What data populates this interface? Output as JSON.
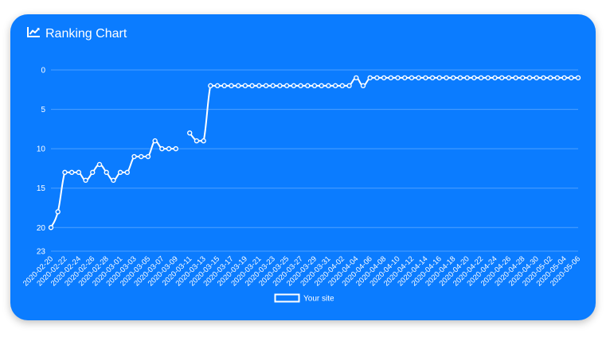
{
  "card": {
    "title": "Ranking Chart",
    "icon": "line-chart-icon"
  },
  "colors": {
    "background": "#0b7cff",
    "line": "#ffffff",
    "grid": "rgba(255,255,255,0.28)"
  },
  "chart_data": {
    "type": "line",
    "title": "Ranking Chart",
    "xlabel": "",
    "ylabel": "",
    "y_reversed": true,
    "ylim": [
      0,
      23
    ],
    "y_ticks": [
      "0",
      "5",
      "10",
      "15",
      "20",
      "23"
    ],
    "grid": true,
    "legend_position": "bottom",
    "x_tick_labels": [
      "2020-02-20",
      "2020-02-22",
      "2020-02-24",
      "2020-02-26",
      "2020-02-28",
      "2020-03-01",
      "2020-03-03",
      "2020-03-05",
      "2020-03-07",
      "2020-03-09",
      "2020-03-11",
      "2020-03-13",
      "2020-03-15",
      "2020-03-17",
      "2020-03-19",
      "2020-03-21",
      "2020-03-23",
      "2020-03-25",
      "2020-03-27",
      "2020-03-29",
      "2020-03-31",
      "2020-04-02",
      "2020-04-04",
      "2020-04-06",
      "2020-04-08",
      "2020-04-10",
      "2020-04-12",
      "2020-04-14",
      "2020-04-16",
      "2020-04-18",
      "2020-04-20",
      "2020-04-22",
      "2020-04-24",
      "2020-04-26",
      "2020-04-28",
      "2020-04-30",
      "2020-05-02",
      "2020-05-04",
      "2020-05-06"
    ],
    "x": [
      "2020-02-20",
      "2020-02-21",
      "2020-02-22",
      "2020-02-23",
      "2020-02-24",
      "2020-02-25",
      "2020-02-26",
      "2020-02-27",
      "2020-02-28",
      "2020-02-29",
      "2020-03-01",
      "2020-03-02",
      "2020-03-03",
      "2020-03-04",
      "2020-03-05",
      "2020-03-06",
      "2020-03-07",
      "2020-03-08",
      "2020-03-09",
      "2020-03-10",
      "2020-03-11",
      "2020-03-12",
      "2020-03-13",
      "2020-03-14",
      "2020-03-15",
      "2020-03-16",
      "2020-03-17",
      "2020-03-18",
      "2020-03-19",
      "2020-03-20",
      "2020-03-21",
      "2020-03-22",
      "2020-03-23",
      "2020-03-24",
      "2020-03-25",
      "2020-03-26",
      "2020-03-27",
      "2020-03-28",
      "2020-03-29",
      "2020-03-30",
      "2020-03-31",
      "2020-04-01",
      "2020-04-02",
      "2020-04-03",
      "2020-04-04",
      "2020-04-05",
      "2020-04-06",
      "2020-04-07",
      "2020-04-08",
      "2020-04-09",
      "2020-04-10",
      "2020-04-11",
      "2020-04-12",
      "2020-04-13",
      "2020-04-14",
      "2020-04-15",
      "2020-04-16",
      "2020-04-17",
      "2020-04-18",
      "2020-04-19",
      "2020-04-20",
      "2020-04-21",
      "2020-04-22",
      "2020-04-23",
      "2020-04-24",
      "2020-04-25",
      "2020-04-26",
      "2020-04-27",
      "2020-04-28",
      "2020-04-29",
      "2020-04-30",
      "2020-05-01",
      "2020-05-02",
      "2020-05-03",
      "2020-05-04",
      "2020-05-05",
      "2020-05-06"
    ],
    "series": [
      {
        "name": "Your site",
        "values": [
          20,
          18,
          13,
          13,
          13,
          14,
          13,
          12,
          13,
          14,
          13,
          13,
          11,
          11,
          11,
          9,
          10,
          10,
          10,
          null,
          8,
          9,
          9,
          2,
          2,
          2,
          2,
          2,
          2,
          2,
          2,
          2,
          2,
          2,
          2,
          2,
          2,
          2,
          2,
          2,
          2,
          2,
          2,
          2,
          1,
          2,
          1,
          1,
          1,
          1,
          1,
          1,
          1,
          1,
          1,
          1,
          1,
          1,
          1,
          1,
          1,
          1,
          1,
          1,
          1,
          1,
          1,
          1,
          1,
          1,
          1,
          1,
          1,
          1,
          1,
          1,
          1
        ]
      }
    ]
  }
}
